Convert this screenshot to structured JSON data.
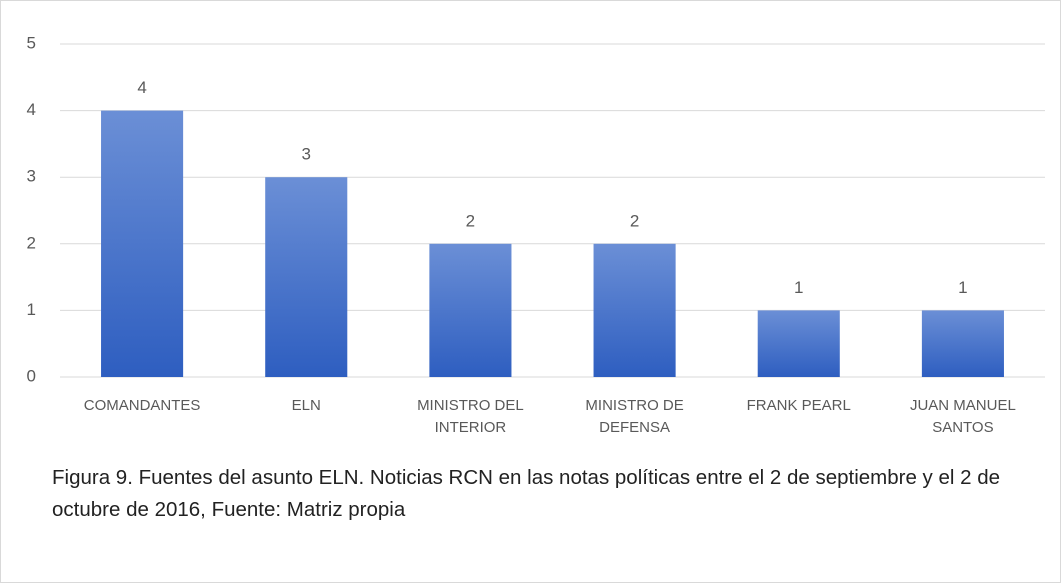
{
  "chart_data": {
    "type": "bar",
    "categories": [
      "COMANDANTES",
      "ELN",
      "MINISTRO DEL INTERIOR",
      "MINISTRO DE DEFENSA",
      "FRANK PEARL",
      "JUAN MANUEL SANTOS"
    ],
    "values": [
      4,
      3,
      2,
      2,
      1,
      1
    ],
    "color": "#3a67c6",
    "ylim": [
      0,
      5
    ],
    "yticks": [
      0,
      1,
      2,
      3,
      4,
      5
    ],
    "grid": true,
    "caption": "Figura 9. Fuentes del asunto ELN. Noticias RCN en las notas políticas entre el 2 de septiembre y el 2 de octubre de 2016, Fuente: Matriz propia"
  }
}
